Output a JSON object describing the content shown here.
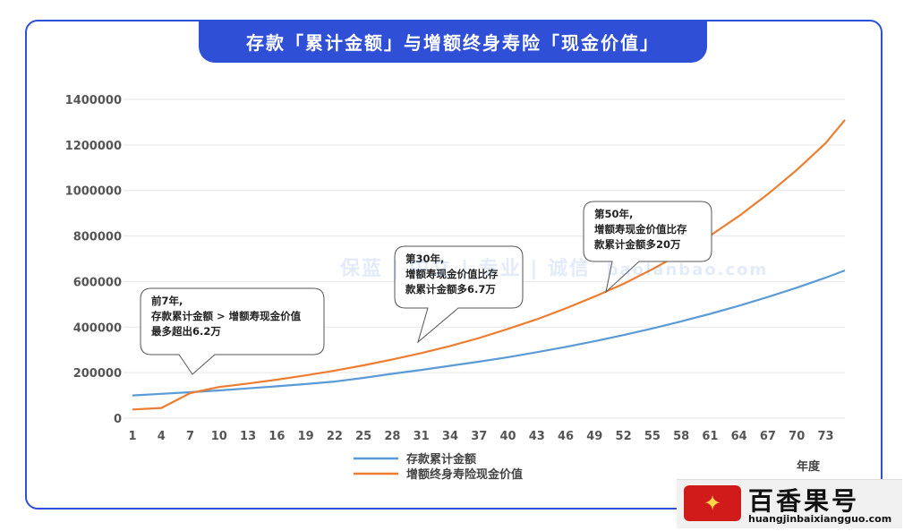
{
  "title": "存款「累计金额」与增额终身寿险「现金价值」",
  "chart_data": {
    "type": "line",
    "x": [
      1,
      4,
      7,
      10,
      13,
      16,
      19,
      22,
      25,
      28,
      31,
      34,
      37,
      40,
      43,
      46,
      49,
      52,
      55,
      58,
      61,
      64,
      67,
      70,
      73,
      75
    ],
    "x_ticks": [
      "1",
      "4",
      "7",
      "10",
      "13",
      "16",
      "19",
      "22",
      "25",
      "28",
      "31",
      "34",
      "37",
      "40",
      "43",
      "46",
      "49",
      "52",
      "55",
      "58",
      "61",
      "64",
      "67",
      "70",
      "73"
    ],
    "xlabel": "年度",
    "ylim": [
      0,
      1400000
    ],
    "y_ticks": [
      "0",
      "200000",
      "400000",
      "600000",
      "800000",
      "1000000",
      "1200000",
      "1400000"
    ],
    "grid": true,
    "series": [
      {
        "name": "存款累计金额",
        "color": "#5b9bd5",
        "values": [
          100000,
          107000,
          114000,
          122000,
          131000,
          140000,
          150000,
          161000,
          177000,
          195000,
          212000,
          230000,
          248000,
          268000,
          290000,
          313000,
          338000,
          365000,
          394000,
          425000,
          458000,
          494000,
          532000,
          573000,
          617000,
          649000
        ]
      },
      {
        "name": "增额终身寿险现金价值",
        "color": "#ed7d31",
        "values": [
          38000,
          45000,
          110000,
          137000,
          152000,
          169000,
          188000,
          209000,
          232000,
          258000,
          286000,
          317000,
          352000,
          392000,
          434000,
          482000,
          534000,
          590000,
          654000,
          724000,
          802000,
          888000,
          984000,
          1090000,
          1208000,
          1310000
        ]
      }
    ],
    "legend_position": "bottom",
    "annotations": [
      {
        "lines": [
          "前7年,",
          "存款累计金额 > 增额寿现金价值",
          "最多超出6.2万"
        ]
      },
      {
        "lines": [
          "第30年,",
          "增额寿现金价值比存",
          "款累计金额多6.7万"
        ]
      },
      {
        "lines": [
          "第50年,",
          "增额寿现金价值比存",
          "款累计金额多20万"
        ]
      }
    ]
  },
  "watermark": "保蓝 | 中立 | 专业 | 诚信",
  "watermark_url": "baolanbao.com",
  "logo": {
    "name": "百香果号",
    "url": "huangjinbaixiangguo.com"
  }
}
